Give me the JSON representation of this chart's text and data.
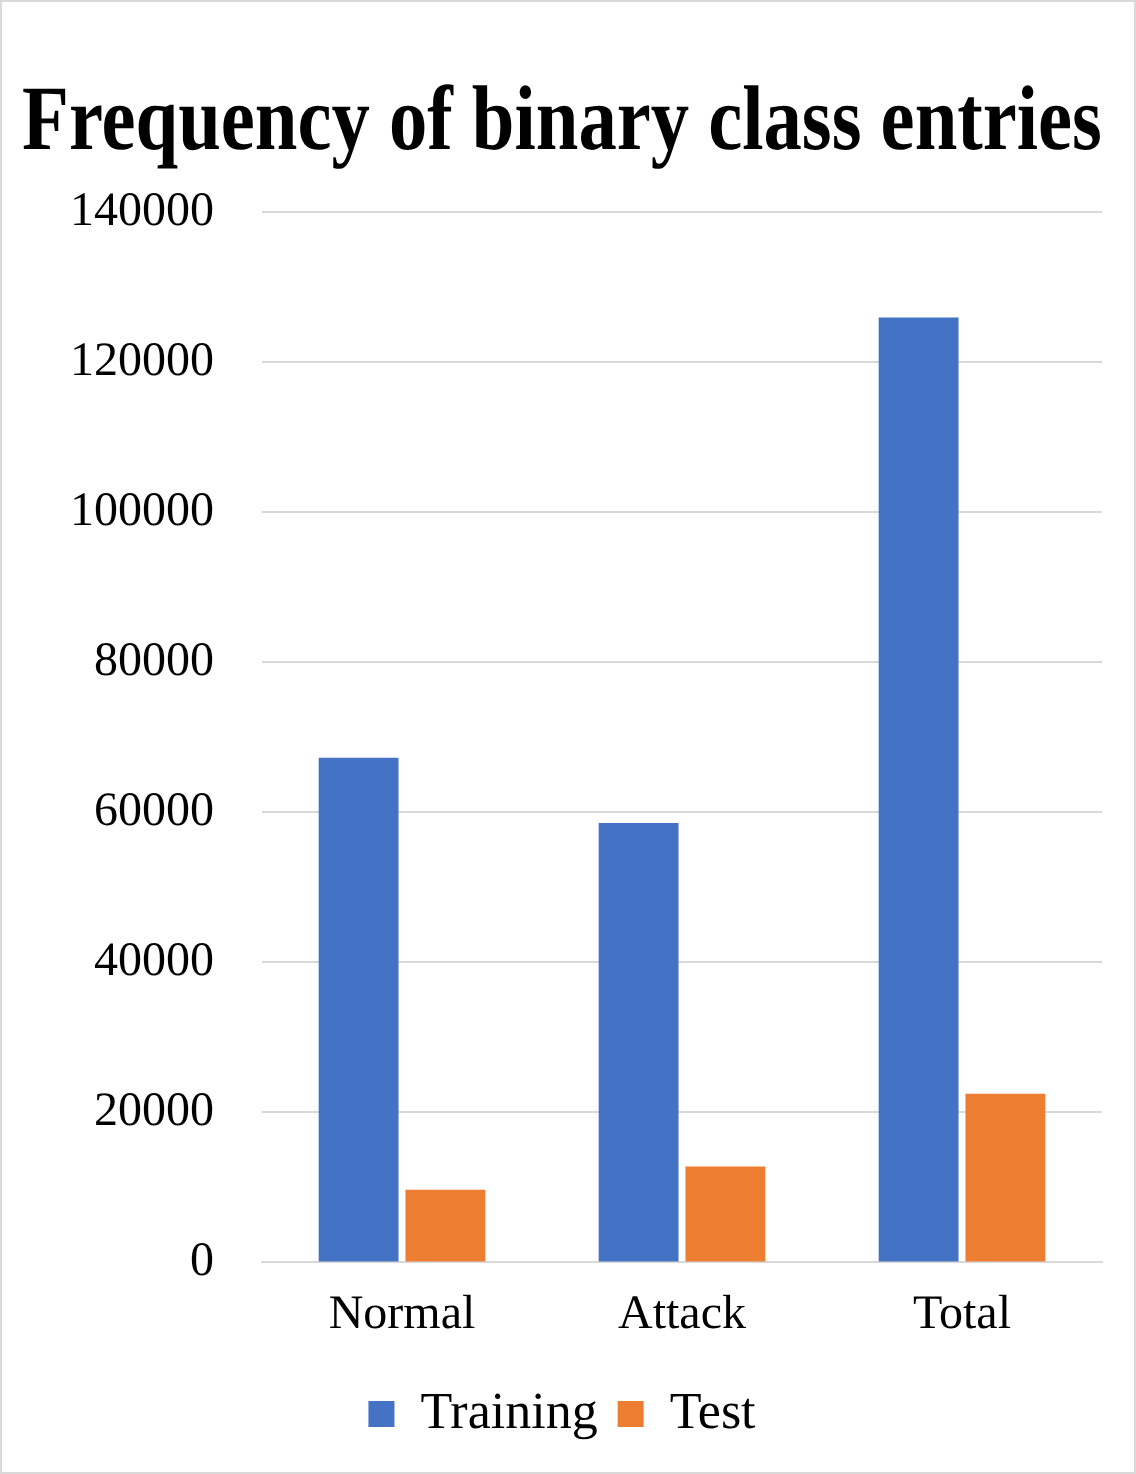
{
  "chart_data": {
    "type": "bar",
    "title": "Frequency of binary class entries",
    "categories": [
      "Normal",
      "Attack",
      "Total"
    ],
    "series": [
      {
        "name": "Training",
        "color": "#4472c4",
        "values": [
          67300,
          58600,
          126000
        ]
      },
      {
        "name": "Test",
        "color": "#ed7d31",
        "values": [
          9700,
          12800,
          22500
        ]
      }
    ],
    "ylim": [
      0,
      140000
    ],
    "yticks": [
      0,
      20000,
      40000,
      60000,
      80000,
      100000,
      120000,
      140000
    ],
    "grid": "y",
    "legend": "bottom"
  }
}
